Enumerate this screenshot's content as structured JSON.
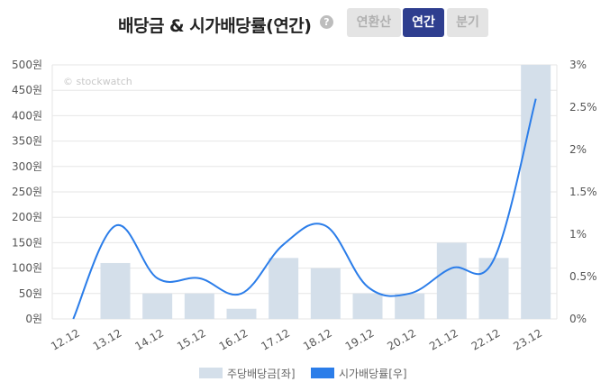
{
  "header": {
    "title": "배당금 & 시가배당률(연간)",
    "help_glyph": "?",
    "buttons": [
      {
        "label": "연환산",
        "active": false
      },
      {
        "label": "연간",
        "active": true
      },
      {
        "label": "분기",
        "active": false
      }
    ]
  },
  "watermark": "© stockwatch",
  "colors": {
    "bar": "#d4dfea",
    "line": "#2b7de9",
    "grid": "#e6e6e6",
    "button_active": "#2e3e8f",
    "button_inactive": "#e4e4e4"
  },
  "chart_data": {
    "type": "bar",
    "categories": [
      "12.12",
      "13.12",
      "14.12",
      "15.12",
      "16.12",
      "17.12",
      "18.12",
      "19.12",
      "20.12",
      "21.12",
      "22.12",
      "23.12"
    ],
    "series": [
      {
        "name": "주당배당금[좌]",
        "type": "bar",
        "axis": "left",
        "values": [
          0,
          110,
          50,
          50,
          20,
          120,
          100,
          50,
          50,
          150,
          120,
          500
        ]
      },
      {
        "name": "시가배당률[우]",
        "type": "line",
        "axis": "right",
        "values": [
          0,
          1.1,
          0.48,
          0.48,
          0.3,
          0.88,
          1.1,
          0.38,
          0.3,
          0.6,
          0.7,
          2.6
        ]
      }
    ],
    "y_left": {
      "min": 0,
      "max": 500,
      "ticks": [
        "0원",
        "50원",
        "100원",
        "150원",
        "200원",
        "250원",
        "300원",
        "350원",
        "400원",
        "450원",
        "500원"
      ]
    },
    "y_right": {
      "min": 0,
      "max": 3,
      "ticks": [
        "0%",
        "0.5%",
        "1%",
        "1.5%",
        "2%",
        "2.5%",
        "3%"
      ]
    },
    "grid": true,
    "legend": "bottom",
    "legend_entries": [
      "주당배당금[좌]",
      "시가배당률[우]"
    ]
  }
}
